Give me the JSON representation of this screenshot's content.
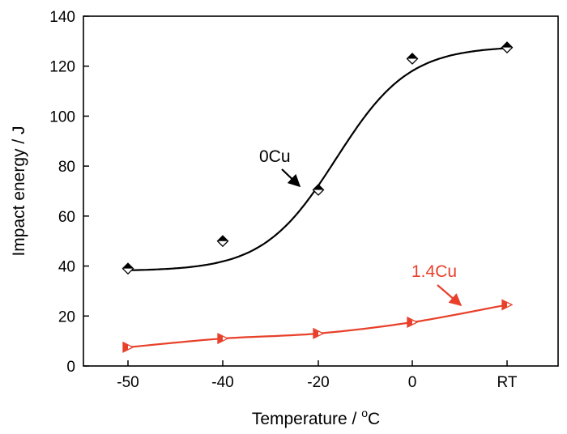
{
  "chart_data": {
    "type": "scatter",
    "categories": [
      "-50",
      "-40",
      "-20",
      "0",
      "RT"
    ],
    "xlabel": "Temperature / ",
    "xlabel_sup": "o",
    "xlabel_unit": "C",
    "ylabel": "Impact energy / J",
    "ylim": [
      0,
      140
    ],
    "yticks": [
      0,
      20,
      40,
      60,
      80,
      100,
      120,
      140
    ],
    "grid": false,
    "series": [
      {
        "name": "0Cu",
        "color": "#000000",
        "marker": "half-filled-diamond",
        "values": [
          39,
          50,
          70.5,
          123,
          127.5
        ],
        "fit_curve": "sigmoid"
      },
      {
        "name": "1.4Cu",
        "color": "#e8402a",
        "marker": "half-filled-right-triangle",
        "values": [
          7.5,
          11,
          13,
          17.5,
          24.5
        ],
        "fit_curve": "smooth"
      }
    ]
  }
}
